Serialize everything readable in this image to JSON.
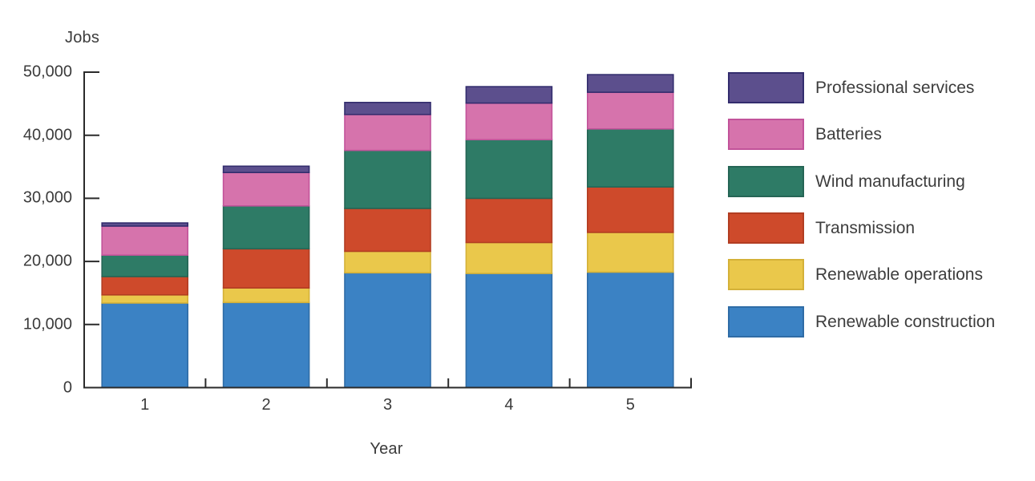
{
  "chart_data": {
    "type": "bar",
    "subtype": "stacked-vertical",
    "title": "Jobs",
    "xlabel": "Year",
    "ylabel": "Jobs",
    "categories": [
      "1",
      "2",
      "3",
      "4",
      "5"
    ],
    "series": [
      {
        "name": "Renewable construction",
        "color": "#3B82C4",
        "border": "#2F6CA6",
        "values": [
          13400,
          13500,
          18200,
          18100,
          18300
        ]
      },
      {
        "name": "Renewable operations",
        "color": "#EAC84B",
        "border": "#D4B138",
        "values": [
          1300,
          2300,
          3400,
          4900,
          6300
        ]
      },
      {
        "name": "Transmission",
        "color": "#CE4A2B",
        "border": "#B23D22",
        "values": [
          2900,
          6200,
          6800,
          7000,
          7200
        ]
      },
      {
        "name": "Wind manufacturing",
        "color": "#2E7B66",
        "border": "#256555",
        "values": [
          3400,
          6800,
          9200,
          9300,
          9200
        ]
      },
      {
        "name": "Batteries",
        "color": "#D673AC",
        "border": "#C2539A",
        "values": [
          4600,
          5300,
          5700,
          5800,
          5800
        ]
      },
      {
        "name": "Professional services",
        "color": "#5C4F8D",
        "border": "#332D6E",
        "values": [
          500,
          1000,
          1900,
          2600,
          2800
        ]
      }
    ],
    "totals": [
      26100,
      35100,
      45200,
      47700,
      49600
    ],
    "ylim": [
      0,
      50000
    ],
    "y_ticks": [
      "0",
      "10,000",
      "20,000",
      "30,000",
      "40,000",
      "50,000"
    ],
    "grid": "off",
    "legend_position": "right",
    "legend_order_top_to_bottom": [
      "Professional services",
      "Batteries",
      "Wind manufacturing",
      "Transmission",
      "Renewable operations",
      "Renewable construction"
    ],
    "axis_color": "#2b2b2b",
    "text_color": "#3b3b3b",
    "background_color": "#ffffff"
  }
}
